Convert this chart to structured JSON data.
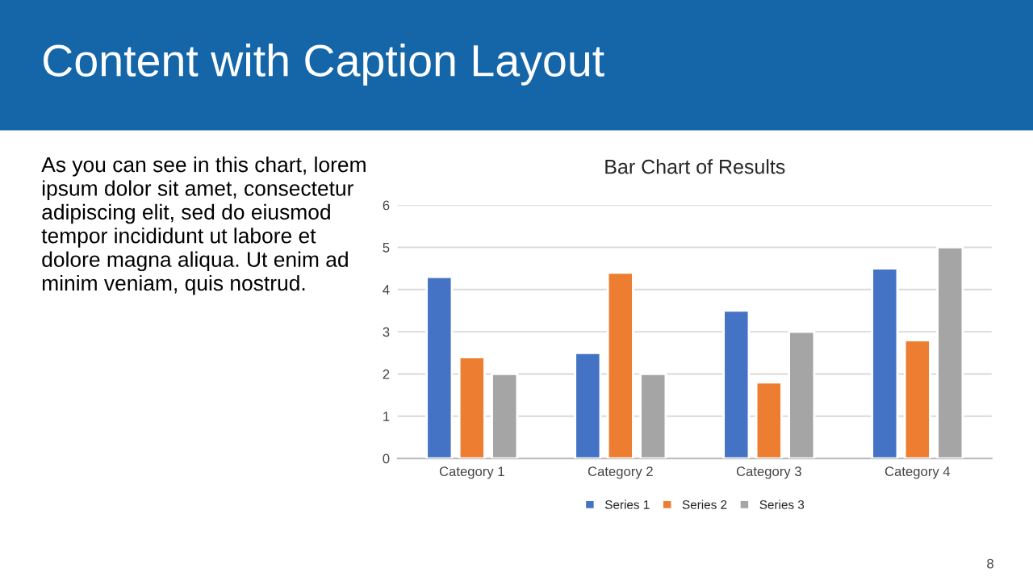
{
  "chart_data": {
    "type": "bar",
    "title": "Bar Chart of Results",
    "categories": [
      "Category 1",
      "Category 2",
      "Category 3",
      "Category 4"
    ],
    "series": [
      {
        "name": "Series 1",
        "color": "#4472c4",
        "values": [
          4.3,
          2.5,
          3.5,
          4.5
        ]
      },
      {
        "name": "Series 2",
        "color": "#ed7d31",
        "values": [
          2.4,
          4.4,
          1.8,
          2.8
        ]
      },
      {
        "name": "Series 3",
        "color": "#a5a5a5",
        "values": [
          2,
          2,
          3,
          5
        ]
      }
    ],
    "ylim": [
      0,
      6
    ],
    "yticks": [
      0,
      1,
      2,
      3,
      4,
      5,
      6
    ],
    "grid": "y",
    "legend": "bottom",
    "annotations": [
      "Content with Caption Layout",
      "As you can see in this chart, lorem\nipsum dolor sit amet, consectetur\nadipiscing elit, sed do eiusmod\ntempor incididunt ut labore et\ndolore magna aliqua. Ut enim ad\nminim veniam, quis nostrud.",
      "8"
    ]
  }
}
